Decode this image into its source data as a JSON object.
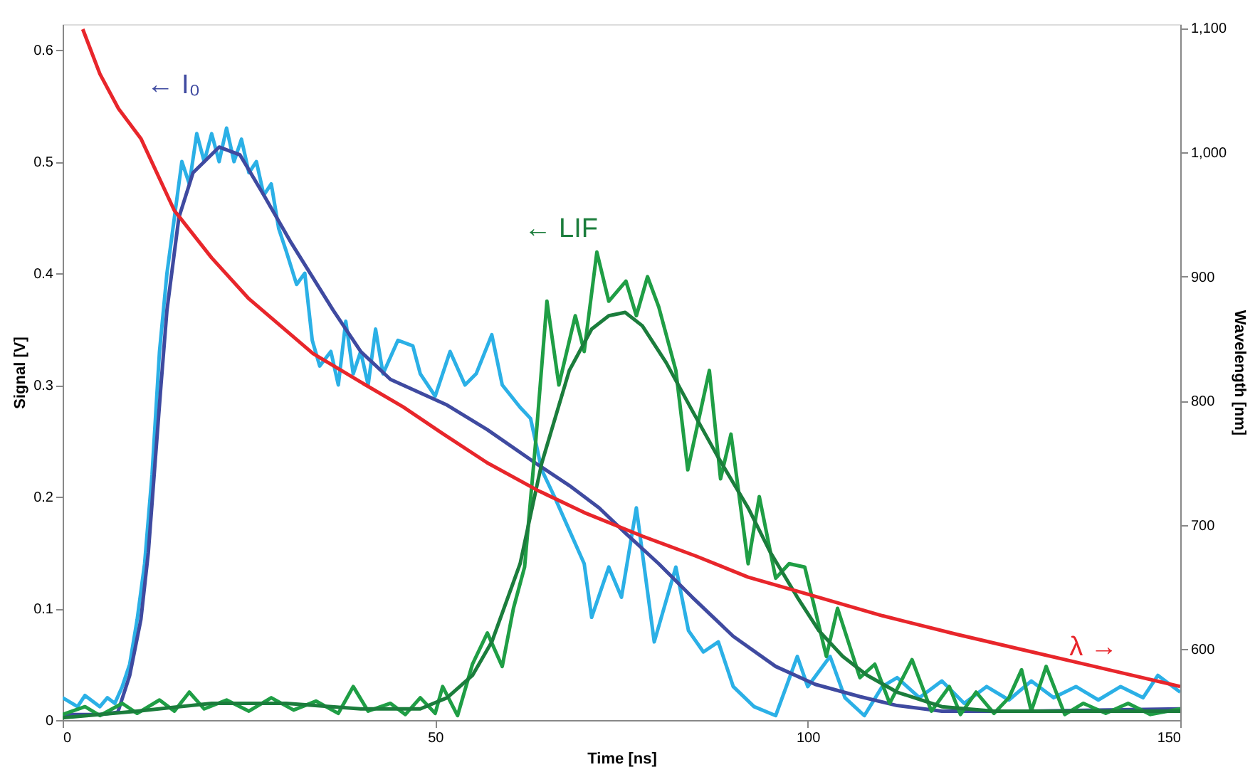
{
  "chart_data": {
    "type": "line",
    "xlabel": "Time [ns]",
    "ylabel": "Signal [V]",
    "y2label": "Wavelength [nm]",
    "xlim": [
      0,
      150
    ],
    "xticks": [
      0,
      50,
      100,
      150
    ],
    "ylim": [
      0,
      0.623
    ],
    "yticks": [
      0,
      0.1,
      0.2,
      0.3,
      0.4,
      0.5,
      0.6
    ],
    "y2lim": [
      543,
      1103
    ],
    "y2ticks": [
      {
        "value": 600,
        "label": "600"
      },
      {
        "value": 700,
        "label": "700"
      },
      {
        "value": 800,
        "label": "800"
      },
      {
        "value": 900,
        "label": "900"
      },
      {
        "value": 1000,
        "label": "1,000"
      },
      {
        "value": 1100,
        "label": "1,100"
      }
    ],
    "grid": false,
    "marker": "none",
    "line_style": "solid",
    "series": [
      {
        "color": "#2bb0e6",
        "x": [
          0,
          2,
          3,
          5,
          6,
          7,
          8,
          9,
          10,
          11,
          12,
          13,
          14,
          15,
          16,
          17,
          18,
          19,
          20,
          21,
          22,
          23,
          24,
          25,
          26,
          27,
          28,
          29,
          30,
          31.4,
          32.5,
          33.5,
          34.5,
          36,
          37,
          38,
          39,
          40,
          41,
          42,
          43,
          45,
          47,
          48,
          50,
          52,
          54,
          55.5,
          57.6,
          59,
          61.4,
          62.8,
          64.3,
          66,
          68,
          70,
          71,
          73.3,
          75,
          77,
          79.4,
          82.3,
          84,
          86,
          88,
          90,
          92.8,
          95.7,
          98.6,
          100,
          103,
          105,
          107.6,
          110,
          112,
          115,
          118,
          121,
          124,
          127,
          130,
          133,
          136,
          139,
          142,
          145,
          147,
          150
        ],
        "values": [
          0.02,
          0.012,
          0.022,
          0.012,
          0.02,
          0.015,
          0.03,
          0.05,
          0.09,
          0.14,
          0.22,
          0.33,
          0.4,
          0.45,
          0.5,
          0.48,
          0.525,
          0.5,
          0.525,
          0.5,
          0.53,
          0.5,
          0.52,
          0.49,
          0.5,
          0.47,
          0.48,
          0.44,
          0.42,
          0.39,
          0.4,
          0.34,
          0.317,
          0.33,
          0.3,
          0.357,
          0.31,
          0.33,
          0.3,
          0.35,
          0.31,
          0.34,
          0.335,
          0.31,
          0.29,
          0.33,
          0.3,
          0.31,
          0.345,
          0.3,
          0.28,
          0.27,
          0.224,
          0.2,
          0.17,
          0.14,
          0.092,
          0.137,
          0.11,
          0.19,
          0.07,
          0.137,
          0.08,
          0.061,
          0.07,
          0.03,
          0.012,
          0.004,
          0.057,
          0.03,
          0.057,
          0.02,
          0.004,
          0.03,
          0.038,
          0.02,
          0.035,
          0.015,
          0.03,
          0.018,
          0.035,
          0.02,
          0.03,
          0.018,
          0.03,
          0.02,
          0.04,
          0.025
        ]
      },
      {
        "color": "#3f4aa0",
        "x": [
          0,
          5,
          7.4,
          9,
          10.5,
          11.5,
          12.4,
          13.2,
          14,
          15.6,
          17.5,
          21,
          23.8,
          27,
          30.7,
          36.3,
          40,
          44,
          51.6,
          57,
          63.7,
          68,
          72,
          75.6,
          80,
          84.5,
          90,
          95.7,
          101,
          107,
          112,
          118,
          130,
          150
        ],
        "values": [
          0.005,
          0.005,
          0.007,
          0.04,
          0.09,
          0.15,
          0.23,
          0.3,
          0.367,
          0.45,
          0.49,
          0.513,
          0.506,
          0.47,
          0.427,
          0.367,
          0.33,
          0.305,
          0.282,
          0.26,
          0.229,
          0.21,
          0.19,
          0.167,
          0.14,
          0.11,
          0.075,
          0.048,
          0.032,
          0.021,
          0.013,
          0.008,
          0.008,
          0.01
        ]
      },
      {
        "color": "#1f9e45",
        "x": [
          0,
          3,
          5,
          8,
          10,
          13,
          15,
          17,
          19,
          22,
          25,
          28,
          31,
          34,
          37,
          39,
          41,
          44,
          46,
          48,
          50,
          51,
          53,
          55,
          57,
          59,
          60.5,
          62,
          63.5,
          65,
          66.6,
          68.8,
          70,
          71.7,
          73.3,
          75.6,
          77,
          78.5,
          80,
          82.3,
          83.9,
          86.8,
          88.3,
          89.7,
          92,
          93.5,
          95.7,
          97.5,
          99.6,
          102.5,
          104,
          107,
          109,
          111,
          114,
          116.6,
          119,
          120.5,
          122.6,
          125,
          127,
          128.7,
          130,
          132,
          134.5,
          137,
          140,
          143,
          146,
          150
        ],
        "values": [
          0.005,
          0.012,
          0.004,
          0.015,
          0.006,
          0.018,
          0.008,
          0.025,
          0.01,
          0.018,
          0.008,
          0.02,
          0.009,
          0.017,
          0.006,
          0.03,
          0.008,
          0.015,
          0.005,
          0.02,
          0.006,
          0.03,
          0.004,
          0.05,
          0.078,
          0.048,
          0.1,
          0.137,
          0.25,
          0.375,
          0.3,
          0.362,
          0.33,
          0.419,
          0.375,
          0.393,
          0.362,
          0.397,
          0.37,
          0.313,
          0.224,
          0.313,
          0.216,
          0.256,
          0.14,
          0.2,
          0.127,
          0.14,
          0.137,
          0.057,
          0.1,
          0.038,
          0.05,
          0.015,
          0.054,
          0.008,
          0.03,
          0.005,
          0.025,
          0.006,
          0.02,
          0.045,
          0.008,
          0.048,
          0.005,
          0.015,
          0.006,
          0.015,
          0.005,
          0.01
        ]
      },
      {
        "color": "#1b7d3c",
        "x": [
          0,
          10,
          20,
          30,
          40,
          48,
          51.6,
          55,
          57.6,
          61.4,
          64.3,
          68,
          71,
          73.3,
          75.5,
          77.8,
          81,
          84.5,
          88,
          92,
          95,
          98.6,
          101.5,
          104.7,
          108,
          112,
          118,
          125,
          150
        ],
        "values": [
          0.002,
          0.008,
          0.015,
          0.015,
          0.01,
          0.01,
          0.02,
          0.04,
          0.07,
          0.14,
          0.23,
          0.313,
          0.35,
          0.362,
          0.365,
          0.353,
          0.32,
          0.277,
          0.235,
          0.19,
          0.15,
          0.11,
          0.08,
          0.057,
          0.04,
          0.025,
          0.012,
          0.008,
          0.008
        ]
      },
      {
        "color": "#e8262b",
        "axis": "y2",
        "x": [
          2.7,
          5,
          7.5,
          10.5,
          15,
          20,
          25,
          33.6,
          40,
          45.7,
          50.9,
          57,
          63.7,
          70,
          77.8,
          85,
          92,
          99.6,
          110,
          120,
          130,
          140,
          150
        ],
        "values": [
          1099,
          1063,
          1035,
          1011,
          953,
          915,
          882,
          838,
          815,
          795,
          774,
          750,
          728,
          710,
          691,
          675,
          658,
          645,
          627,
          612,
          598,
          584,
          570
        ]
      }
    ],
    "annotations": [
      "← I₀",
      "← LIF",
      "λ →"
    ]
  }
}
